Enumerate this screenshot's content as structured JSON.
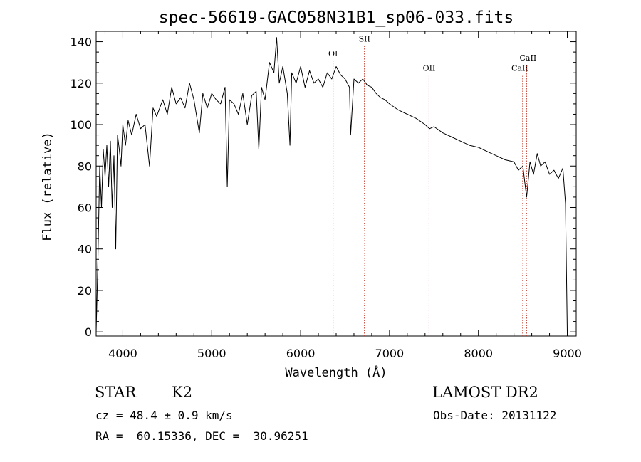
{
  "chart_data": {
    "type": "line",
    "title": "spec-56619-GAC058N31B1_sp06-033.fits",
    "xlabel": "Wavelength (Å)",
    "ylabel": "Flux (relative)",
    "xlim": [
      3700,
      9100
    ],
    "ylim": [
      -2,
      145
    ],
    "xticks": [
      4000,
      5000,
      6000,
      7000,
      8000,
      9000
    ],
    "yticks": [
      0,
      20,
      40,
      60,
      80,
      100,
      120,
      140
    ],
    "grid": false,
    "series": [
      {
        "x": [
          3700,
          3720,
          3740,
          3760,
          3780,
          3800,
          3820,
          3840,
          3860,
          3880,
          3900,
          3920,
          3940,
          3960,
          3980,
          4000,
          4030,
          4060,
          4100,
          4150,
          4200,
          4250,
          4300,
          4340,
          4380,
          4450,
          4500,
          4550,
          4600,
          4650,
          4700,
          4750,
          4800,
          4861,
          4900,
          4950,
          5000,
          5050,
          5100,
          5150,
          5175,
          5200,
          5250,
          5300,
          5350,
          5400,
          5450,
          5500,
          5530,
          5560,
          5600,
          5650,
          5700,
          5730,
          5760,
          5800,
          5850,
          5880,
          5900,
          5950,
          6000,
          6050,
          6100,
          6150,
          6200,
          6250,
          6300,
          6350,
          6400,
          6450,
          6500,
          6550,
          6563,
          6600,
          6650,
          6700,
          6750,
          6800,
          6850,
          6900,
          6950,
          7000,
          7100,
          7200,
          7300,
          7400,
          7450,
          7500,
          7600,
          7700,
          7800,
          7900,
          8000,
          8100,
          8200,
          8300,
          8400,
          8450,
          8500,
          8542,
          8580,
          8620,
          8662,
          8700,
          8750,
          8800,
          8850,
          8900,
          8950,
          8980,
          9000
        ],
        "values": [
          0,
          35,
          80,
          60,
          88,
          75,
          90,
          70,
          92,
          60,
          85,
          40,
          95,
          88,
          80,
          100,
          90,
          102,
          95,
          105,
          98,
          100,
          80,
          108,
          104,
          112,
          105,
          118,
          110,
          113,
          108,
          120,
          112,
          96,
          115,
          108,
          115,
          112,
          110,
          118,
          70,
          112,
          110,
          105,
          115,
          100,
          114,
          116,
          88,
          118,
          112,
          130,
          125,
          142,
          120,
          128,
          115,
          90,
          125,
          120,
          128,
          118,
          126,
          120,
          122,
          118,
          125,
          122,
          128,
          124,
          122,
          118,
          95,
          122,
          120,
          122,
          119,
          118,
          115,
          113,
          112,
          110,
          107,
          105,
          103,
          100,
          98,
          99,
          96,
          94,
          92,
          90,
          89,
          87,
          85,
          83,
          82,
          78,
          80,
          65,
          82,
          76,
          86,
          80,
          82,
          76,
          78,
          74,
          79,
          62,
          0
        ]
      }
    ],
    "lines": [
      {
        "label": "OI",
        "x": 6365
      },
      {
        "label": "SII",
        "x": 6718
      },
      {
        "label": "OII",
        "x": 7445
      },
      {
        "label": "CaII",
        "x": 8498
      },
      {
        "label": "CaII",
        "x": 8542
      }
    ]
  },
  "info": {
    "class_label": "STAR",
    "subclass_label": "K2",
    "survey": "LAMOST DR2",
    "cz": "cz = 48.4 ± 0.9 km/s",
    "obs_date": "Obs-Date: 20131122",
    "radec": "RA =  60.15336, DEC =  30.96251"
  }
}
